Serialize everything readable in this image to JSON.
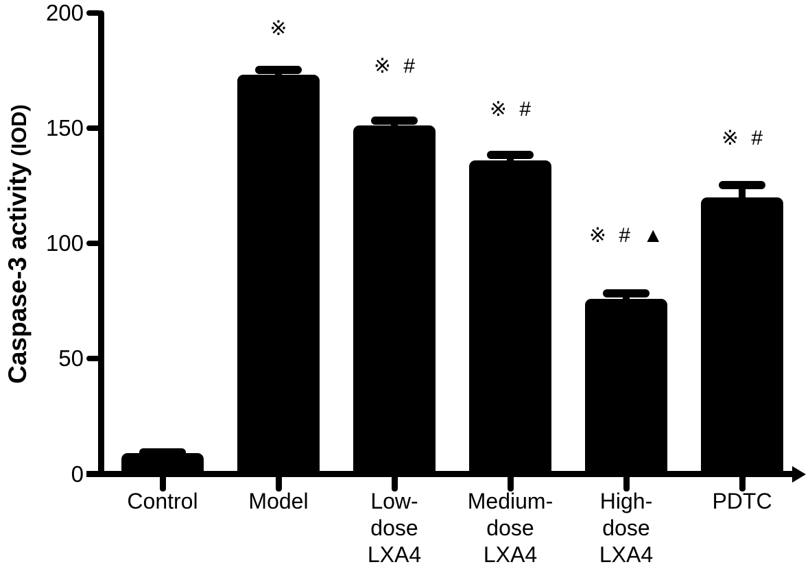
{
  "figure": {
    "background_color": "#ffffff",
    "ink_color": "#000000"
  },
  "chart_data": {
    "type": "bar",
    "title": "",
    "ylabel": "Caspase-3 activity (IOD)",
    "ylabel_main": "Caspase-3 activity",
    "ylabel_unit": "(IOD)",
    "xlabel": "",
    "ylim": [
      0,
      200
    ],
    "ytick_labels": [
      "0",
      "50",
      "100",
      "150",
      "200"
    ],
    "ytick_values": [
      0,
      50,
      100,
      150,
      200
    ],
    "grid": false,
    "legend": null,
    "bar_color": "#000000",
    "categories": [
      "Control",
      "Model",
      "Low-dose LXA4",
      "Medium-dose LXA4",
      "High-dose LXA4",
      "PDTC"
    ],
    "category_label_lines": [
      [
        "Control"
      ],
      [
        "Model"
      ],
      [
        "Low-",
        "dose",
        "LXA4"
      ],
      [
        "Medium-",
        "dose",
        "LXA4"
      ],
      [
        "High-",
        "dose",
        "LXA4"
      ],
      [
        "PDTC"
      ]
    ],
    "values": [
      9,
      173,
      151,
      136,
      76,
      120
    ],
    "error_sd": [
      2,
      4,
      4,
      4,
      4,
      7
    ],
    "significance_annotations": [
      "",
      "※",
      "※ #",
      "※ #",
      "※ # ▲",
      "※ #"
    ],
    "annotation_y_centers": [
      null,
      42,
      97,
      160,
      344,
      202
    ]
  }
}
